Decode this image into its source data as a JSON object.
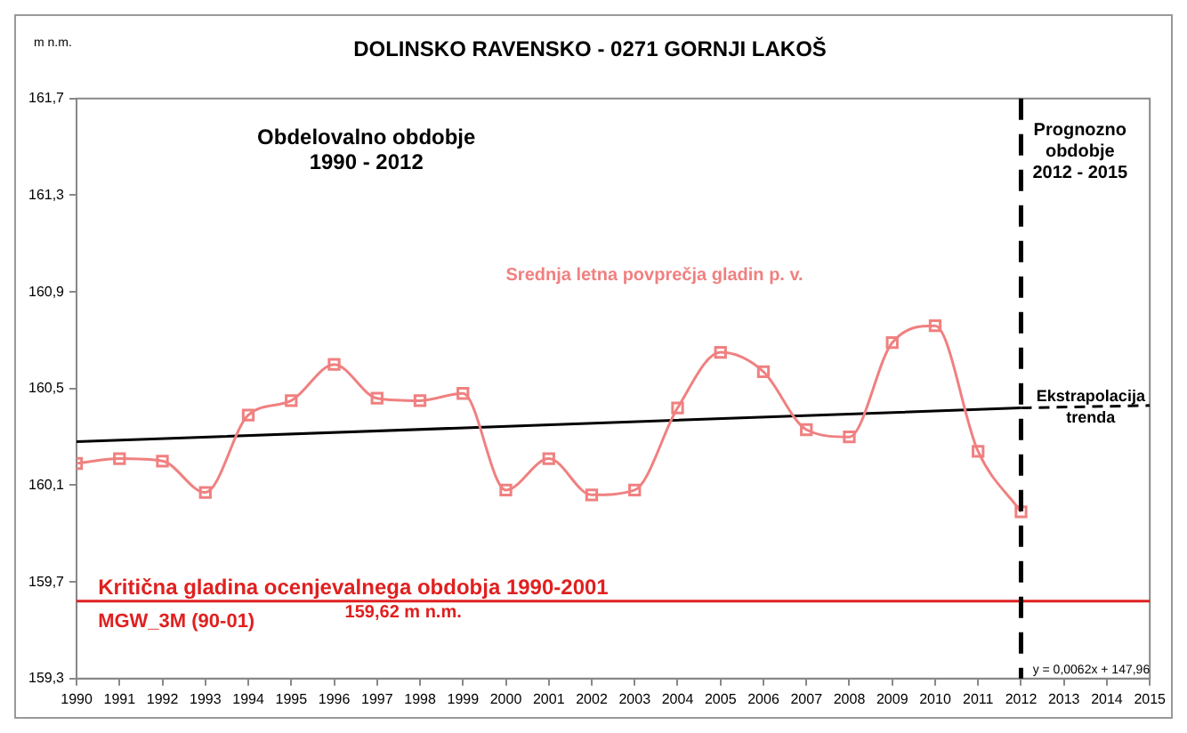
{
  "chart_data": {
    "type": "line",
    "title": "DOLINSKO RAVENSKO - 0271 GORNJI LAKOŠ",
    "ylabel": "m n.m.",
    "xlim": [
      1990,
      2015
    ],
    "xticks": [
      1990,
      1991,
      1992,
      1993,
      1994,
      1995,
      1996,
      1997,
      1998,
      1999,
      2000,
      2001,
      2002,
      2003,
      2004,
      2005,
      2006,
      2007,
      2008,
      2009,
      2010,
      2011,
      2012,
      2013,
      2014,
      2015
    ],
    "ylim": [
      159.3,
      161.7
    ],
    "yticks": [
      {
        "value": 159.3,
        "label": "159,3"
      },
      {
        "value": 159.7,
        "label": "159,7"
      },
      {
        "value": 160.1,
        "label": "160,1"
      },
      {
        "value": 160.5,
        "label": "160,5"
      },
      {
        "value": 160.9,
        "label": "160,9"
      },
      {
        "value": 161.3,
        "label": "161,3"
      },
      {
        "value": 161.7,
        "label": "161,7"
      }
    ],
    "grid": false,
    "legend": false,
    "series": [
      {
        "name": "Srednja letna povprečja gladin p. v.",
        "color": "#f08080",
        "marker": "square",
        "line_style": "solid",
        "x": [
          1990,
          1991,
          1992,
          1993,
          1994,
          1995,
          1996,
          1997,
          1998,
          1999,
          2000,
          2001,
          2002,
          2003,
          2004,
          2005,
          2006,
          2007,
          2008,
          2009,
          2010,
          2011,
          2012
        ],
        "values": [
          160.19,
          160.21,
          160.2,
          160.07,
          160.39,
          160.45,
          160.6,
          160.46,
          160.45,
          160.48,
          160.08,
          160.21,
          160.06,
          160.08,
          160.42,
          160.65,
          160.57,
          160.33,
          160.3,
          160.69,
          160.76,
          160.24,
          159.99
        ]
      },
      {
        "color": "#000000",
        "marker": "none",
        "line_style": "solid",
        "x": [
          1990,
          2012
        ],
        "values": [
          160.28,
          160.42
        ]
      },
      {
        "name": "Ekstrapolacija trenda",
        "color": "#000000",
        "marker": "none",
        "line_style": "dashed",
        "x": [
          2012,
          2015
        ],
        "values": [
          160.42,
          160.43
        ]
      }
    ],
    "ref_lines": [
      {
        "axis": "y",
        "value": 159.62,
        "label": "Kritična gladina ocenjevalnega obdobja 1990-2001",
        "color": "#e02020",
        "line_style": "solid"
      },
      {
        "axis": "x",
        "value": 2012,
        "color": "#000000",
        "line_style": "dashed"
      }
    ],
    "annotations": [
      "Obdelovalno obdobje\n1990 - 2012",
      "Prognozno\nobdobje\n2012 - 2015",
      "MGW_3M (90-01)",
      "159,62 m n.m.",
      "y = 0,0062x + 147,96"
    ]
  }
}
